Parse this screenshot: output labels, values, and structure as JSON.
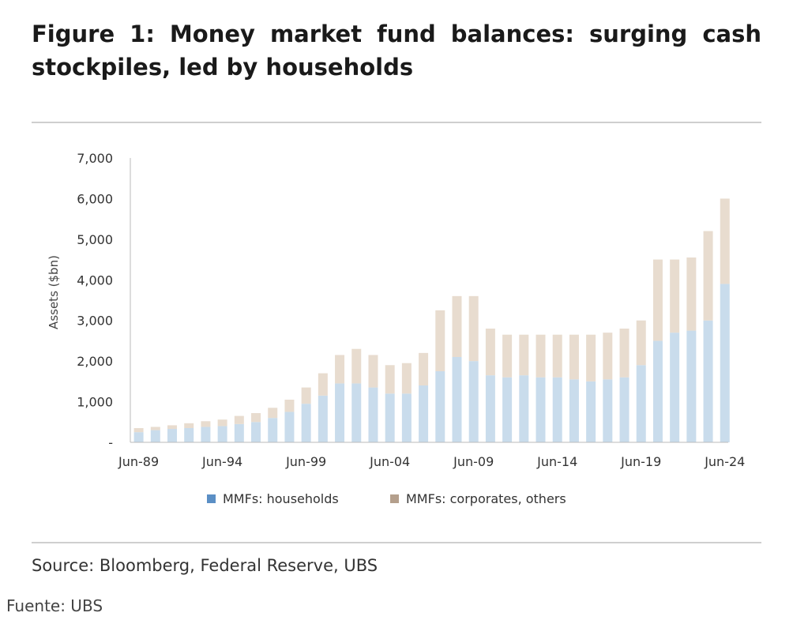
{
  "title": "Figure 1: Money market fund balances: surging cash stockpiles, led by households",
  "source": "Source: Bloomberg, Federal Reserve, UBS",
  "credit": "Fuente: UBS",
  "colors": {
    "households": "#c9dcec",
    "corporates": "#e8dccf",
    "households_legend": "#5b8fc5",
    "corporates_legend": "#b49f8c"
  },
  "chart_data": {
    "type": "bar",
    "stacked": true,
    "ylabel": "Assets ($bn)",
    "ylim": [
      0,
      7000
    ],
    "y_ticks": [
      0,
      1000,
      2000,
      3000,
      4000,
      5000,
      6000,
      7000
    ],
    "y_tick_labels": [
      "-",
      "1,000",
      "2,000",
      "3,000",
      "4,000",
      "5,000",
      "6,000",
      "7,000"
    ],
    "x_tick_labels": [
      "Jun-89",
      "Jun-94",
      "Jun-99",
      "Jun-04",
      "Jun-09",
      "Jun-14",
      "Jun-19",
      "Jun-24"
    ],
    "x_ticks_year": [
      1989.5,
      1994.5,
      1999.5,
      2004.5,
      2009.5,
      2014.5,
      2019.5,
      2024.5
    ],
    "x": [
      1989.5,
      1990.5,
      1991.5,
      1992.5,
      1993.5,
      1994.5,
      1995.5,
      1996.5,
      1997.5,
      1998.5,
      1999.5,
      2000.5,
      2001.5,
      2002.5,
      2003.5,
      2004.5,
      2005.5,
      2006.5,
      2007.5,
      2008.5,
      2009.5,
      2010.5,
      2011.5,
      2012.5,
      2013.5,
      2014.5,
      2015.5,
      2016.5,
      2017.5,
      2018.5,
      2019.5,
      2020.5,
      2021.5,
      2022.5,
      2023.5,
      2024.5
    ],
    "series": [
      {
        "name": "MMFs: households",
        "values": [
          250,
          300,
          330,
          350,
          380,
          400,
          450,
          500,
          600,
          750,
          950,
          1150,
          1450,
          1450,
          1350,
          1200,
          1200,
          1400,
          1750,
          2100,
          2000,
          1650,
          1600,
          1650,
          1600,
          1600,
          1550,
          1500,
          1550,
          1600,
          1900,
          2500,
          2700,
          2750,
          3000,
          3900
        ]
      },
      {
        "name": "MMFs: corporates, others",
        "values": [
          100,
          80,
          90,
          120,
          140,
          160,
          200,
          220,
          250,
          300,
          400,
          550,
          700,
          850,
          800,
          700,
          750,
          800,
          1500,
          1500,
          1600,
          1150,
          1050,
          1000,
          1050,
          1050,
          1100,
          1150,
          1150,
          1200,
          1100,
          2000,
          1800,
          1800,
          2200,
          2100
        ]
      }
    ],
    "legend": "bottom",
    "grid": false
  }
}
